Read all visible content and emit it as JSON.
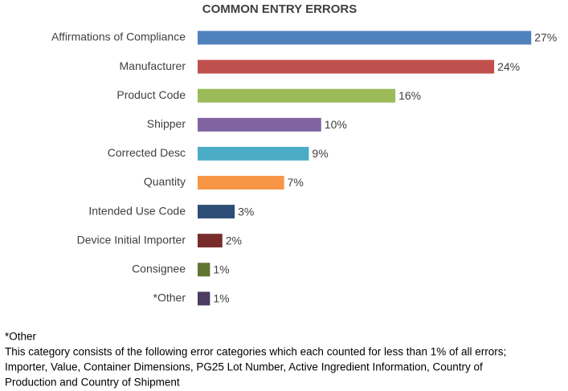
{
  "chart_data": {
    "type": "barh",
    "title": "COMMON ENTRY ERRORS",
    "categories": [
      "Affirmations of Compliance",
      "Manufacturer",
      "Product Code",
      "Shipper",
      "Corrected Desc",
      "Quantity",
      "Intended Use Code",
      "Device Initial Importer",
      "Consignee",
      "*Other"
    ],
    "values": [
      27,
      24,
      16,
      10,
      9,
      7,
      3,
      2,
      1,
      1
    ],
    "value_labels": [
      "27%",
      "24%",
      "16%",
      "10%",
      "9%",
      "7%",
      "3%",
      "2%",
      "1%",
      "1%"
    ],
    "colors": [
      "#4f81bd",
      "#c0504d",
      "#9bbb59",
      "#8064a2",
      "#4bacc6",
      "#f79646",
      "#2c4d75",
      "#772c2a",
      "#5f7530",
      "#4d3b62"
    ],
    "xlim": [
      0,
      29
    ],
    "footnote": {
      "label": "*Other",
      "lines": [
        "This category consists of the following error categories which each counted for less than 1% of all errors;",
        "Importer, Value, Container Dimensions, PG25 Lot Number, Active Ingredient Information, Country of",
        "Production and Country of Shipment"
      ]
    }
  }
}
